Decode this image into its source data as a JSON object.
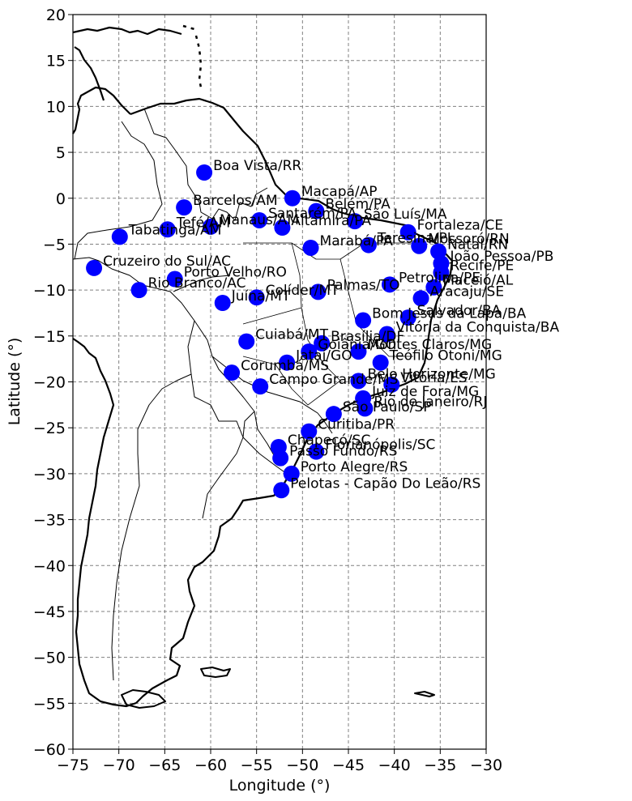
{
  "chart_data": {
    "type": "scatter",
    "title": "",
    "xlabel": "Longitude (°)",
    "ylabel": "Latitude (°)",
    "xlim": [
      -75,
      -30
    ],
    "ylim": [
      -60,
      20
    ],
    "x_ticks": [
      -75,
      -70,
      -65,
      -60,
      -55,
      -50,
      -45,
      -40,
      -35,
      -30
    ],
    "y_ticks": [
      20,
      15,
      10,
      5,
      0,
      -5,
      -10,
      -15,
      -20,
      -25,
      -30,
      -35,
      -40,
      -45,
      -50,
      -55,
      -60
    ],
    "grid": true,
    "marker_color": "#0000ff",
    "basemap": "country borders and coastlines",
    "stations": [
      {
        "name": "Boa Vista/RR",
        "x": -60.7,
        "y": 2.8
      },
      {
        "name": "Macapá/AP",
        "x": -51.1,
        "y": 0.0
      },
      {
        "name": "Barcelos/AM",
        "x": -62.9,
        "y": -1.0
      },
      {
        "name": "Belém/PA",
        "x": -48.5,
        "y": -1.4
      },
      {
        "name": "Santarém/PA",
        "x": -54.7,
        "y": -2.4
      },
      {
        "name": "São Luís/MA",
        "x": -44.3,
        "y": -2.5
      },
      {
        "name": "Tefé/AM",
        "x": -64.7,
        "y": -3.4
      },
      {
        "name": "Manaus/AM",
        "x": -60.0,
        "y": -3.1
      },
      {
        "name": "Altamira/PA",
        "x": -52.2,
        "y": -3.2
      },
      {
        "name": "Tabatinga/AM",
        "x": -69.9,
        "y": -4.2
      },
      {
        "name": "Fortaleza/CE",
        "x": -38.5,
        "y": -3.7
      },
      {
        "name": "Mossoró/RN",
        "x": -37.3,
        "y": -5.2
      },
      {
        "name": "Marabá/PA",
        "x": -49.1,
        "y": -5.4
      },
      {
        "name": "Teresina/PI",
        "x": -42.8,
        "y": -5.1
      },
      {
        "name": "Natal/RN",
        "x": -35.2,
        "y": -5.8
      },
      {
        "name": "João Pessoa/PB",
        "x": -34.9,
        "y": -7.1
      },
      {
        "name": "Recife/PE",
        "x": -34.9,
        "y": -8.1
      },
      {
        "name": "Petrolina/PE",
        "x": -40.5,
        "y": -9.4
      },
      {
        "name": "Cruzeiro do Sul/AC",
        "x": -72.7,
        "y": -7.6
      },
      {
        "name": "Porto Velho/RO",
        "x": -63.9,
        "y": -8.8
      },
      {
        "name": "Rio Branco/AC",
        "x": -67.8,
        "y": -10.0
      },
      {
        "name": "Maceió/AL",
        "x": -35.7,
        "y": -9.7
      },
      {
        "name": "Aracaju/SE",
        "x": -37.1,
        "y": -10.9
      },
      {
        "name": "Palmas/TO",
        "x": -48.3,
        "y": -10.2
      },
      {
        "name": "Colíder/MT",
        "x": -55.0,
        "y": -10.8
      },
      {
        "name": "Juína/MT",
        "x": -58.7,
        "y": -11.4
      },
      {
        "name": "Salvador/BA",
        "x": -38.5,
        "y": -13.0
      },
      {
        "name": "Bom Jesus da Lapa/BA",
        "x": -43.4,
        "y": -13.3
      },
      {
        "name": "Vitória da Conquista/BA",
        "x": -40.8,
        "y": -14.8
      },
      {
        "name": "Brasília/DF",
        "x": -47.9,
        "y": -15.8
      },
      {
        "name": "Cuiabá/MT",
        "x": -56.1,
        "y": -15.6
      },
      {
        "name": "Montes Claros/MG",
        "x": -43.9,
        "y": -16.7
      },
      {
        "name": "Goiânia/GO",
        "x": -49.3,
        "y": -16.7
      },
      {
        "name": "Jataí/GO",
        "x": -51.7,
        "y": -17.9
      },
      {
        "name": "Teófilo Otoni/MG",
        "x": -41.5,
        "y": -17.9
      },
      {
        "name": "Corumbá/MS",
        "x": -57.7,
        "y": -19.0
      },
      {
        "name": "Belo Horizonte/MG",
        "x": -43.9,
        "y": -19.9
      },
      {
        "name": "Vitória/ES",
        "x": -40.3,
        "y": -20.3
      },
      {
        "name": "Campo Grande/MS",
        "x": -54.6,
        "y": -20.5
      },
      {
        "name": "Juiz de Fora/MG",
        "x": -43.4,
        "y": -21.8
      },
      {
        "name": "Rio de Janeiro/RJ",
        "x": -43.2,
        "y": -22.9
      },
      {
        "name": "São Paulo/SP",
        "x": -46.6,
        "y": -23.5
      },
      {
        "name": "Curitiba/PR",
        "x": -49.3,
        "y": -25.4
      },
      {
        "name": "Florianópolis/SC",
        "x": -48.5,
        "y": -27.6
      },
      {
        "name": "Chapecó/SC",
        "x": -52.6,
        "y": -27.1
      },
      {
        "name": "Passo Fundo/RS",
        "x": -52.4,
        "y": -28.3
      },
      {
        "name": "Porto Alegre/RS",
        "x": -51.2,
        "y": -30.0
      },
      {
        "name": "Pelotas - Capão Do Leão/RS",
        "x": -52.3,
        "y": -31.8
      }
    ]
  }
}
